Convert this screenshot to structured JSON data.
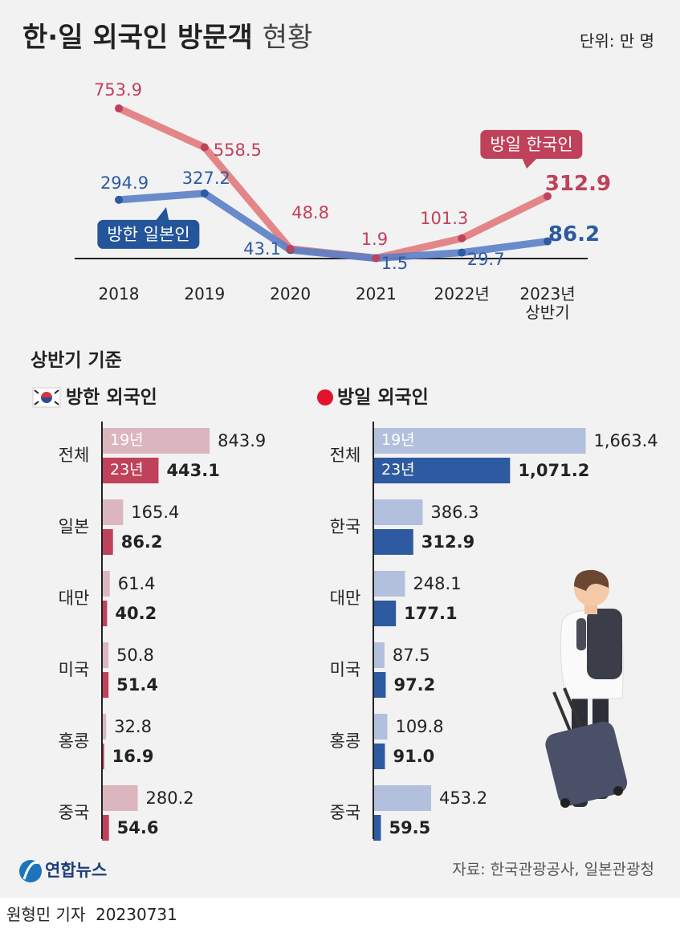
{
  "header": {
    "title": "한·일 외국인 방문객",
    "title_suffix": "현황",
    "unit": "단위: 만 명"
  },
  "chart_data": [
    {
      "type": "line",
      "categories": [
        "2018",
        "2019",
        "2020",
        "2021",
        "2022년",
        "2023년 상반기"
      ],
      "ylim": [
        0,
        800
      ],
      "series": [
        {
          "name": "방한 일본인",
          "color": "#5b80c6",
          "label_color": "#2d5aa0",
          "legend_color": "#24559a",
          "values": [
            294.9,
            327.2,
            43.1,
            1.5,
            29.7,
            86.2
          ]
        },
        {
          "name": "방일 한국인",
          "color": "#e27a7c",
          "label_color": "#c0415a",
          "legend_color": "#c0415a",
          "values": [
            753.9,
            558.5,
            48.8,
            1.9,
            101.3,
            312.9
          ]
        }
      ]
    },
    {
      "type": "barh",
      "title": "방한 외국인",
      "categories": [
        "전체",
        "일본",
        "대만",
        "미국",
        "홍콩",
        "중국"
      ],
      "xlim": [
        0,
        1700
      ],
      "series": [
        {
          "name": "19년",
          "color": "#dcb6bf",
          "values": [
            843.9,
            165.4,
            61.4,
            50.8,
            32.8,
            280.2
          ]
        },
        {
          "name": "23년",
          "color": "#c0415a",
          "values": [
            443.1,
            86.2,
            40.2,
            51.4,
            16.9,
            54.6
          ]
        }
      ]
    },
    {
      "type": "barh",
      "title": "방일 외국인",
      "categories": [
        "전체",
        "한국",
        "대만",
        "미국",
        "홍콩",
        "중국"
      ],
      "xlim": [
        0,
        1700
      ],
      "series": [
        {
          "name": "19년",
          "color": "#b2c0dd",
          "values": [
            1663.4,
            386.3,
            248.1,
            87.5,
            109.8,
            453.2
          ],
          "value_labels": [
            "1,663.4",
            "386.3",
            "248.1",
            "87.5",
            "109.8",
            "453.2"
          ]
        },
        {
          "name": "23년",
          "color": "#2d5aa0",
          "values": [
            1071.2,
            312.9,
            177.1,
            97.2,
            91.0,
            59.5
          ],
          "value_labels": [
            "1,071.2",
            "312.9",
            "177.1",
            "97.2",
            "91.0",
            "59.5"
          ]
        }
      ]
    }
  ],
  "section_title": "상반기 기준",
  "footer": {
    "logo": "연합뉴스",
    "source": "자료: 한국관광공사, 일본관광청",
    "byline": "원형민 기자",
    "date": "20230731"
  }
}
